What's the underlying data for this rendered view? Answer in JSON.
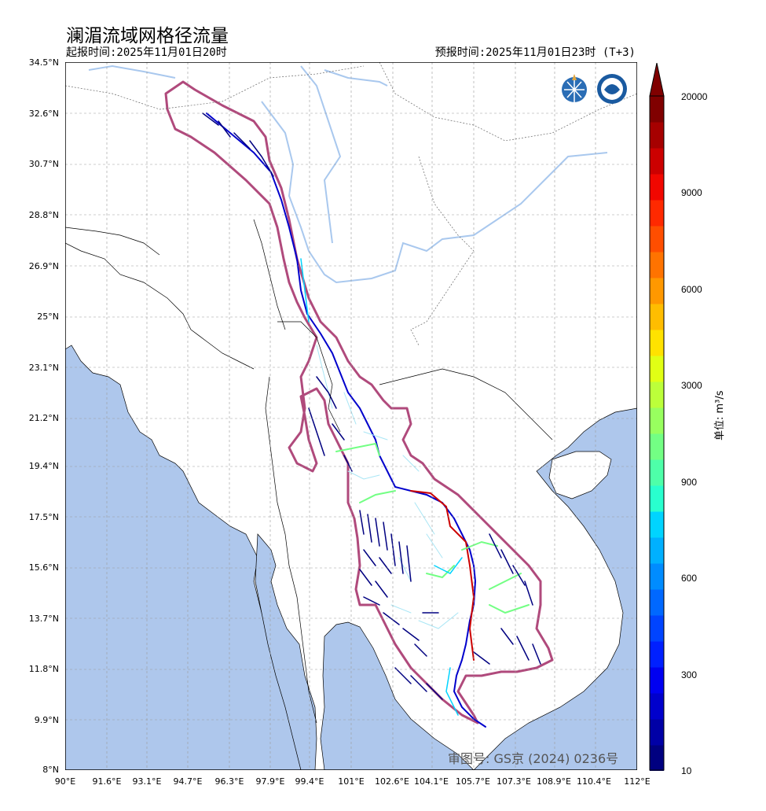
{
  "title": "澜湄流域网格径流量",
  "issue_time": "起报时间:2025年11月01日20时",
  "valid_time": "预报时间:2025年11月01日23时 (T+3)",
  "approval_number": "审图号: GS京 (2024) 0236号",
  "unit_label": "单位: m³/s",
  "lat_ticks": [
    "34.5°N",
    "32.6°N",
    "30.7°N",
    "28.8°N",
    "26.9°N",
    "25°N",
    "23.1°N",
    "21.2°N",
    "19.4°N",
    "17.5°N",
    "15.6°N",
    "13.7°N",
    "11.8°N",
    "9.9°N",
    "8°N"
  ],
  "lon_ticks": [
    "90°E",
    "91.6°E",
    "93.1°E",
    "94.7°E",
    "96.3°E",
    "97.9°E",
    "99.4°E",
    "101°E",
    "102.6°E",
    "104.1°E",
    "105.7°E",
    "107.3°E",
    "108.9°E",
    "110.4°E",
    "112°E"
  ],
  "colorbar": {
    "labels": [
      "20000",
      "9000",
      "6000",
      "3000",
      "900",
      "600",
      "300",
      "10"
    ],
    "colors": [
      "#000080",
      "#0000a6",
      "#0000cc",
      "#0000f1",
      "#0020ff",
      "#0044ff",
      "#0068ff",
      "#008cff",
      "#00b0ff",
      "#00d4ff",
      "#29ffce",
      "#4effa9",
      "#73ff84",
      "#98ff5f",
      "#bcff3a",
      "#e1ff15",
      "#ffe200",
      "#ffbd00",
      "#ff9800",
      "#ff7300",
      "#ff4e00",
      "#ff2900",
      "#f10700",
      "#cc0000",
      "#a60000",
      "#800000"
    ]
  },
  "colors": {
    "ocean": "#aec7ec",
    "land": "#ffffff",
    "basin_outline": "#b04a7c",
    "river_blue": "#a9c8ee"
  }
}
